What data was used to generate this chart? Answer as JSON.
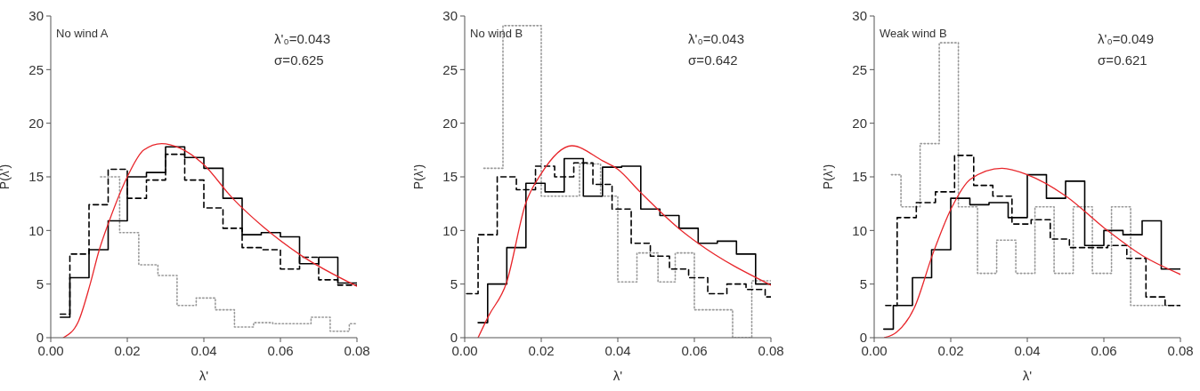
{
  "chart_data": [
    {
      "type": "step",
      "xlabel": "λ'",
      "ylabel": "P(λ')",
      "annotations": [
        "No wind A",
        "λ'₀=0.043",
        "σ=0.625"
      ],
      "xlim": [
        0,
        0.08
      ],
      "ylim": [
        0,
        30
      ],
      "xticks": [
        {
          "value": 0,
          "label": "0.00"
        },
        {
          "value": 0.02,
          "label": "0.02"
        },
        {
          "value": 0.04,
          "label": "0.04"
        },
        {
          "value": 0.06,
          "label": "0.06"
        },
        {
          "value": 0.08,
          "label": "0.08"
        }
      ],
      "yticks": [
        0,
        5,
        10,
        15,
        20,
        25,
        30
      ],
      "series": [
        {
          "color": "#999999",
          "line_style": "dotted",
          "x": [
            0.013,
            0.018,
            0.023,
            0.028,
            0.033,
            0.038,
            0.043,
            0.048,
            0.053,
            0.058,
            0.063,
            0.068,
            0.073,
            0.078,
            0.08
          ],
          "values": [
            15.0,
            9.8,
            6.8,
            5.8,
            3.0,
            3.7,
            2.6,
            1.0,
            1.4,
            1.3,
            1.3,
            1.9,
            0.6,
            1.3,
            1.3
          ]
        },
        {
          "color": "#000000",
          "line_style": "dashed",
          "x": [
            0.0025,
            0.005,
            0.01,
            0.015,
            0.02,
            0.025,
            0.03,
            0.035,
            0.04,
            0.045,
            0.05,
            0.055,
            0.06,
            0.065,
            0.07,
            0.075,
            0.08
          ],
          "values": [
            2.2,
            7.8,
            12.4,
            15.7,
            13.0,
            14.7,
            17.1,
            14.7,
            12.1,
            10.2,
            8.4,
            8.2,
            6.4,
            7.5,
            5.4,
            4.9,
            4.9
          ]
        },
        {
          "color": "#000000",
          "line_style": "solid",
          "x": [
            0.0025,
            0.005,
            0.01,
            0.015,
            0.02,
            0.025,
            0.03,
            0.035,
            0.04,
            0.045,
            0.05,
            0.055,
            0.06,
            0.065,
            0.07,
            0.075,
            0.08
          ],
          "values": [
            1.9,
            5.6,
            8.2,
            10.9,
            15.0,
            15.4,
            17.8,
            16.8,
            15.8,
            13.0,
            9.6,
            9.8,
            9.4,
            6.9,
            7.5,
            5.1,
            5.1
          ]
        },
        {
          "type": "line",
          "color": "#e8262b",
          "line_style": "solid",
          "x": [
            0.0033,
            0.0072,
            0.0103,
            0.0126,
            0.0153,
            0.02,
            0.0243,
            0.029,
            0.0336,
            0.0398,
            0.0475,
            0.0553,
            0.0653,
            0.08
          ],
          "values": [
            0,
            1.5,
            5.0,
            8.1,
            10.9,
            15.0,
            17.5,
            18.1,
            17.7,
            16.2,
            13.0,
            10.4,
            7.7,
            4.8
          ]
        }
      ]
    },
    {
      "type": "step",
      "xlabel": "λ'",
      "ylabel": "P(λ')",
      "annotations": [
        "No wind B",
        "λ'₀=0.043",
        "σ=0.642"
      ],
      "xlim": [
        0,
        0.08
      ],
      "ylim": [
        0,
        30
      ],
      "xticks": [
        {
          "value": 0,
          "label": "0.00"
        },
        {
          "value": 0.02,
          "label": "0.02"
        },
        {
          "value": 0.04,
          "label": "0.04"
        },
        {
          "value": 0.06,
          "label": "0.06"
        },
        {
          "value": 0.08,
          "label": "0.08"
        }
      ],
      "yticks": [
        0,
        5,
        10,
        15,
        20,
        25,
        30
      ],
      "series": [
        {
          "color": "#999999",
          "line_style": "dotted",
          "x": [
            0.005,
            0.01,
            0.02,
            0.03,
            0.0355,
            0.04,
            0.045,
            0.0505,
            0.055,
            0.06,
            0.07,
            0.075,
            0.08
          ],
          "values": [
            15.8,
            29.1,
            13.2,
            16.2,
            13.2,
            5.2,
            7.9,
            5.2,
            7.9,
            2.6,
            0,
            5.3,
            5.3
          ]
        },
        {
          "color": "#000000",
          "line_style": "dashed",
          "x": [
            0.0005,
            0.0035,
            0.0085,
            0.0135,
            0.0185,
            0.0235,
            0.0285,
            0.0335,
            0.0385,
            0.0435,
            0.0485,
            0.0535,
            0.0585,
            0.0635,
            0.0685,
            0.0735,
            0.0785,
            0.08
          ],
          "values": [
            4.1,
            9.6,
            15.0,
            13.8,
            16.0,
            15.0,
            16.3,
            14.3,
            12.0,
            8.8,
            7.6,
            6.4,
            5.6,
            4.1,
            5.0,
            4.5,
            3.8,
            3.8
          ]
        },
        {
          "color": "#000000",
          "line_style": "solid",
          "x": [
            0.0035,
            0.006,
            0.011,
            0.016,
            0.021,
            0.026,
            0.031,
            0.036,
            0.041,
            0.046,
            0.051,
            0.056,
            0.061,
            0.066,
            0.071,
            0.076,
            0.08
          ],
          "values": [
            1.4,
            5.0,
            8.4,
            14.4,
            13.6,
            16.7,
            13.2,
            15.9,
            16.0,
            12.0,
            11.4,
            10.2,
            8.8,
            9.0,
            7.8,
            5.0,
            5.0
          ]
        },
        {
          "type": "line",
          "color": "#e8262b",
          "line_style": "solid",
          "x": [
            0.0035,
            0.0062,
            0.0109,
            0.0159,
            0.02,
            0.028,
            0.036,
            0.04,
            0.0458,
            0.0559,
            0.061,
            0.08
          ],
          "values": [
            0,
            2.0,
            5.1,
            12.5,
            15.3,
            17.9,
            16.5,
            15.7,
            13.6,
            10.2,
            8.8,
            4.9
          ]
        }
      ]
    },
    {
      "type": "step",
      "xlabel": "λ'",
      "ylabel": "P(λ')",
      "annotations": [
        "Weak wind B",
        "λ'₀=0.049",
        "σ=0.621"
      ],
      "xlim": [
        0,
        0.08
      ],
      "ylim": [
        0,
        30
      ],
      "xticks": [
        {
          "value": 0,
          "label": "0.00"
        },
        {
          "value": 0.02,
          "label": "0.02"
        },
        {
          "value": 0.04,
          "label": "0.04"
        },
        {
          "value": 0.06,
          "label": "0.06"
        },
        {
          "value": 0.08,
          "label": "0.08"
        }
      ],
      "yticks": [
        0,
        5,
        10,
        15,
        20,
        25,
        30
      ],
      "series": [
        {
          "color": "#999999",
          "line_style": "dotted",
          "x": [
            0.0045,
            0.007,
            0.012,
            0.017,
            0.022,
            0.027,
            0.032,
            0.037,
            0.042,
            0.047,
            0.052,
            0.057,
            0.062,
            0.067,
            0.08
          ],
          "values": [
            15.2,
            12.2,
            18.1,
            27.5,
            12.2,
            6.0,
            9.1,
            6.0,
            12.2,
            6.0,
            12.2,
            6.0,
            12.2,
            3.0,
            3.0
          ]
        },
        {
          "color": "#000000",
          "line_style": "dashed",
          "x": [
            0.003,
            0.006,
            0.011,
            0.016,
            0.021,
            0.026,
            0.031,
            0.036,
            0.041,
            0.046,
            0.051,
            0.056,
            0.061,
            0.066,
            0.071,
            0.076,
            0.08
          ],
          "values": [
            3.0,
            11.2,
            12.6,
            13.6,
            17.0,
            14.2,
            13.2,
            10.6,
            11.0,
            9.2,
            8.4,
            8.4,
            8.6,
            7.4,
            3.8,
            3.0,
            3.0
          ]
        },
        {
          "color": "#000000",
          "line_style": "solid",
          "x": [
            0.0025,
            0.005,
            0.01,
            0.015,
            0.02,
            0.025,
            0.03,
            0.035,
            0.04,
            0.045,
            0.05,
            0.055,
            0.06,
            0.065,
            0.07,
            0.075,
            0.08
          ],
          "values": [
            0.8,
            3.0,
            5.6,
            8.2,
            13.0,
            12.4,
            12.6,
            11.2,
            15.2,
            13.0,
            14.6,
            8.6,
            10.0,
            9.6,
            10.9,
            6.4,
            6.4
          ]
        },
        {
          "type": "line",
          "color": "#e8262b",
          "line_style": "solid",
          "x": [
            0.0027,
            0.0058,
            0.0105,
            0.0153,
            0.0202,
            0.0252,
            0.0334,
            0.04,
            0.0501,
            0.0602,
            0.0703,
            0.08
          ],
          "values": [
            0,
            0.5,
            2.8,
            7.8,
            12.1,
            14.8,
            15.8,
            15.2,
            13.2,
            10.2,
            7.6,
            5.9
          ]
        }
      ]
    }
  ]
}
